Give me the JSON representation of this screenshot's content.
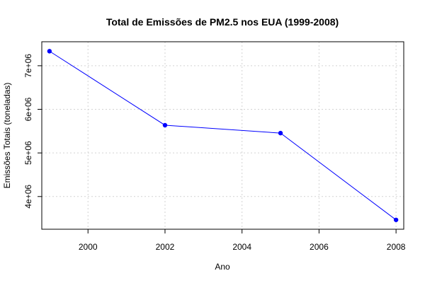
{
  "chart_data": {
    "type": "line",
    "title": "Total de Emissões de PM2.5 nos EUA (1999-2008)",
    "xlabel": "Ano",
    "ylabel": "Emissões Totais (toneladas)",
    "x": [
      1999,
      2002,
      2005,
      2008
    ],
    "series": [
      {
        "name": "Emissões Totais",
        "values": [
          7332967,
          5635780,
          5454703,
          3464206
        ]
      }
    ],
    "xlim": [
      1998.8,
      2008.2
    ],
    "ylim": [
      3250000,
      7550000
    ],
    "xticks": [
      2000,
      2002,
      2004,
      2006,
      2008
    ],
    "xtick_labels": [
      "2000",
      "2002",
      "2004",
      "2006",
      "2008"
    ],
    "yticks": [
      4000000,
      5000000,
      6000000,
      7000000
    ],
    "ytick_labels": [
      "4e+06",
      "5e+06",
      "6e+06",
      "7e+06"
    ],
    "grid": true,
    "colors": {
      "line": "#0000ff",
      "point": "#0000ff",
      "grid": "#d3d3d3"
    }
  }
}
